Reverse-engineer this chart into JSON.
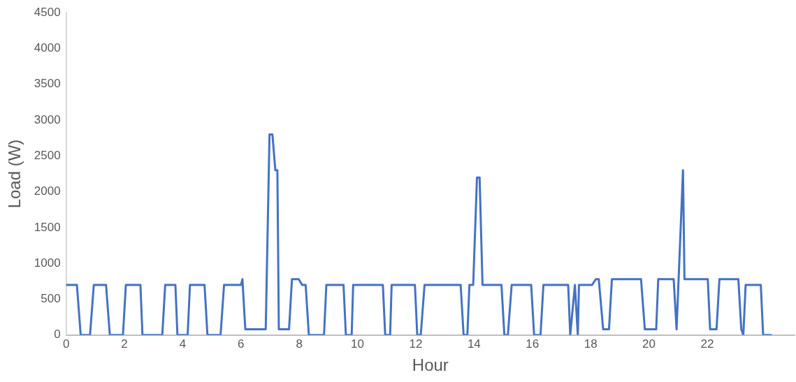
{
  "chart_data": {
    "type": "line",
    "xlabel": "Hour",
    "ylabel": "Load (W)",
    "xlim": [
      0,
      25
    ],
    "xticks": [
      0,
      2,
      4,
      6,
      8,
      10,
      12,
      14,
      16,
      18,
      20,
      22
    ],
    "ylim": [
      0,
      4500
    ],
    "yticks": [
      0,
      500,
      1000,
      1500,
      2000,
      2500,
      3000,
      3500,
      4000,
      4500
    ],
    "grid": false,
    "legend": false,
    "marker": "none",
    "line_style": "solid",
    "series": [
      {
        "color": "#4472c4",
        "x": [
          0,
          0.37,
          0.5,
          0.82,
          0.95,
          1.37,
          1.5,
          1.95,
          2.05,
          2.55,
          2.62,
          3.3,
          3.4,
          3.75,
          3.82,
          4.17,
          4.25,
          4.75,
          4.85,
          5.3,
          5.42,
          6.0,
          6.05,
          6.15,
          6.85,
          6.98,
          7.08,
          7.18,
          7.25,
          7.3,
          7.65,
          7.75,
          7.98,
          8.1,
          8.22,
          8.33,
          8.85,
          8.93,
          9.52,
          9.6,
          9.8,
          9.85,
          10.87,
          10.95,
          11.12,
          11.17,
          11.97,
          12.05,
          12.17,
          12.3,
          13.54,
          13.64,
          13.77,
          13.84,
          13.97,
          14.1,
          14.19,
          14.29,
          14.94,
          15.04,
          15.16,
          15.29,
          15.96,
          16.06,
          16.28,
          16.38,
          17.23,
          17.3,
          17.46,
          17.56,
          17.6,
          18.05,
          18.18,
          18.28,
          18.43,
          18.63,
          18.73,
          19.73,
          19.86,
          20.25,
          20.32,
          20.85,
          20.95,
          21.17,
          21.22,
          22.02,
          22.1,
          22.32,
          22.42,
          23.07,
          23.17,
          23.24,
          23.32,
          23.84,
          23.92,
          24.19
        ],
        "values": [
          700,
          700,
          0,
          0,
          700,
          700,
          0,
          0,
          700,
          700,
          0,
          0,
          700,
          700,
          0,
          0,
          700,
          700,
          0,
          0,
          700,
          700,
          780,
          80,
          80,
          2800,
          2800,
          2300,
          2300,
          80,
          80,
          780,
          780,
          700,
          700,
          0,
          0,
          700,
          700,
          0,
          0,
          700,
          700,
          0,
          0,
          700,
          700,
          0,
          0,
          700,
          700,
          0,
          0,
          700,
          700,
          2200,
          2200,
          700,
          700,
          0,
          0,
          700,
          700,
          0,
          0,
          700,
          700,
          0,
          700,
          0,
          700,
          700,
          780,
          780,
          80,
          80,
          780,
          780,
          80,
          80,
          780,
          780,
          80,
          2300,
          780,
          780,
          80,
          80,
          780,
          780,
          80,
          0,
          700,
          700,
          0,
          0
        ]
      }
    ]
  }
}
